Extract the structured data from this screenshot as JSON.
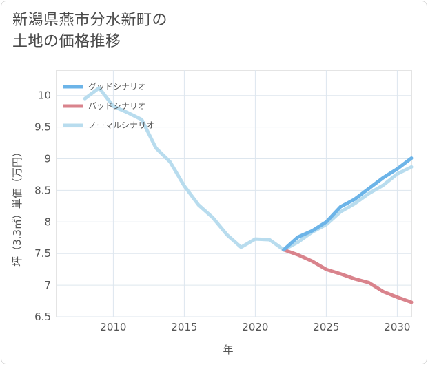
{
  "page": {
    "title_line1": "新潟県燕市分水新町の",
    "title_line2": "土地の価格推移"
  },
  "chart_data": {
    "type": "line",
    "title": "新潟県燕市分水新町の土地の価格推移",
    "xlabel": "年",
    "ylabel": "坪（3.3㎡）単価（万円）",
    "xlim": [
      2006,
      2031
    ],
    "ylim": [
      6.5,
      10.4
    ],
    "x_ticks": [
      2010,
      2015,
      2020,
      2025,
      2030
    ],
    "y_ticks": [
      6.5,
      7,
      7.5,
      8,
      8.5,
      9,
      9.5,
      10
    ],
    "y_tick_labels": [
      "6.5",
      "7",
      "7.5",
      "8",
      "8.5",
      "9",
      "9.5",
      "10"
    ],
    "grid": true,
    "legend_position": "top-left",
    "series": [
      {
        "name": "グッドシナリオ",
        "color": "#6cb4e8",
        "x": [
          2022,
          2023,
          2024,
          2025,
          2026,
          2027,
          2028,
          2029,
          2030,
          2031
        ],
        "values": [
          7.56,
          7.76,
          7.86,
          8.0,
          8.24,
          8.36,
          8.53,
          8.7,
          8.84,
          9.01
        ]
      },
      {
        "name": "バッドシナリオ",
        "color": "#d9838c",
        "x": [
          2022,
          2023,
          2024,
          2025,
          2026,
          2027,
          2028,
          2029,
          2030,
          2031
        ],
        "values": [
          7.56,
          7.48,
          7.38,
          7.25,
          7.18,
          7.1,
          7.04,
          6.9,
          6.81,
          6.73
        ]
      },
      {
        "name": "ノーマルシナリオ",
        "color": "#b8dcee",
        "x": [
          2008,
          2009,
          2010,
          2011,
          2012,
          2013,
          2014,
          2015,
          2016,
          2017,
          2018,
          2019,
          2020,
          2021,
          2022,
          2023,
          2024,
          2025,
          2026,
          2027,
          2028,
          2029,
          2030,
          2031
        ],
        "values": [
          9.95,
          10.12,
          9.83,
          9.73,
          9.62,
          9.17,
          8.95,
          8.57,
          8.27,
          8.07,
          7.8,
          7.6,
          7.73,
          7.72,
          7.56,
          7.68,
          7.84,
          7.96,
          8.16,
          8.29,
          8.45,
          8.58,
          8.76,
          8.87
        ]
      }
    ]
  }
}
